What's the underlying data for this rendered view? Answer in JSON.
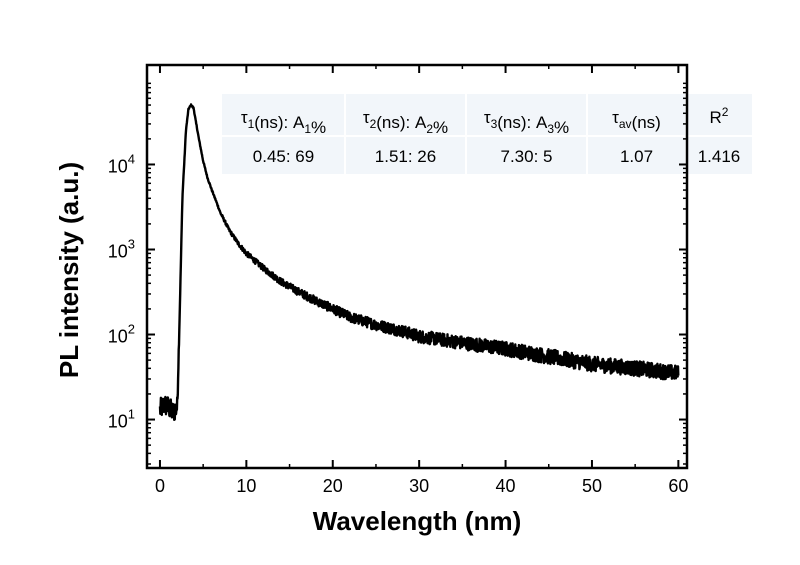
{
  "chart_data": {
    "type": "line",
    "title": "",
    "xlabel": "Wavelength (nm)",
    "ylabel": "PL intensity (a.u.)",
    "xlim": [
      -1.5,
      61
    ],
    "ylim_log10": [
      0.43,
      5.17
    ],
    "y_scale": "log",
    "x_ticks": [
      0,
      10,
      20,
      30,
      40,
      50,
      60
    ],
    "y_ticks": [
      {
        "base": "10",
        "exp": "1",
        "value": 10
      },
      {
        "base": "10",
        "exp": "2",
        "value": 100
      },
      {
        "base": "10",
        "exp": "3",
        "value": 1000
      },
      {
        "base": "10",
        "exp": "4",
        "value": 10000
      }
    ],
    "series": [
      {
        "color": "#000000",
        "x": [
          0,
          0.5,
          1,
          1.5,
          2,
          2.3,
          2.6,
          3,
          3.3,
          3.6,
          3.9,
          4.2,
          4.5,
          4.8,
          5,
          5.5,
          6,
          6.5,
          7,
          8,
          9,
          10,
          12,
          14,
          16,
          18,
          20,
          22,
          25,
          28,
          30,
          35,
          40,
          45,
          50,
          55,
          60
        ],
        "y": [
          13,
          15,
          14,
          12,
          14,
          200,
          4000,
          25000,
          45000,
          50000,
          46000,
          30000,
          20000,
          14000,
          11000,
          7000,
          5000,
          3700,
          2700,
          1700,
          1200,
          900,
          600,
          420,
          320,
          250,
          200,
          160,
          130,
          110,
          95,
          80,
          68,
          55,
          45,
          40,
          35
        ],
        "noise_log10": [
          0.13,
          0.13,
          0.13,
          0.13,
          0.13,
          0.02,
          0.02,
          0.01,
          0.01,
          0.01,
          0.01,
          0.01,
          0.01,
          0.01,
          0.01,
          0.01,
          0.01,
          0.01,
          0.015,
          0.02,
          0.025,
          0.03,
          0.035,
          0.04,
          0.045,
          0.05,
          0.055,
          0.06,
          0.065,
          0.07,
          0.075,
          0.08,
          0.085,
          0.09,
          0.09,
          0.09,
          0.09
        ]
      }
    ],
    "table": {
      "headers": [
        {
          "parts": [
            {
              "t": "τ"
            },
            {
              "t": "1",
              "sub": true
            },
            {
              "t": "(ns): A"
            },
            {
              "t": "1",
              "sub": true
            },
            {
              "t": "%"
            }
          ]
        },
        {
          "parts": [
            {
              "t": "τ"
            },
            {
              "t": "2",
              "sub": true
            },
            {
              "t": "(ns): A"
            },
            {
              "t": "2",
              "sub": true
            },
            {
              "t": "%"
            }
          ]
        },
        {
          "parts": [
            {
              "t": "τ"
            },
            {
              "t": "3",
              "sub": true
            },
            {
              "t": "(ns): A"
            },
            {
              "t": "3",
              "sub": true
            },
            {
              "t": "%"
            }
          ]
        },
        {
          "parts": [
            {
              "t": "τ"
            },
            {
              "t": "av",
              "sub": true
            },
            {
              "t": "(ns)"
            }
          ]
        },
        {
          "parts": [
            {
              "t": "R"
            },
            {
              "t": "2",
              "sup": true
            }
          ]
        }
      ],
      "values": [
        "0.45: 69",
        "1.51: 26",
        "7.30: 5",
        "1.07",
        "1.416"
      ],
      "header_bg": "#f2f6fa",
      "row_bg": "#f2f6fa"
    },
    "grid": false,
    "legend": "none"
  }
}
